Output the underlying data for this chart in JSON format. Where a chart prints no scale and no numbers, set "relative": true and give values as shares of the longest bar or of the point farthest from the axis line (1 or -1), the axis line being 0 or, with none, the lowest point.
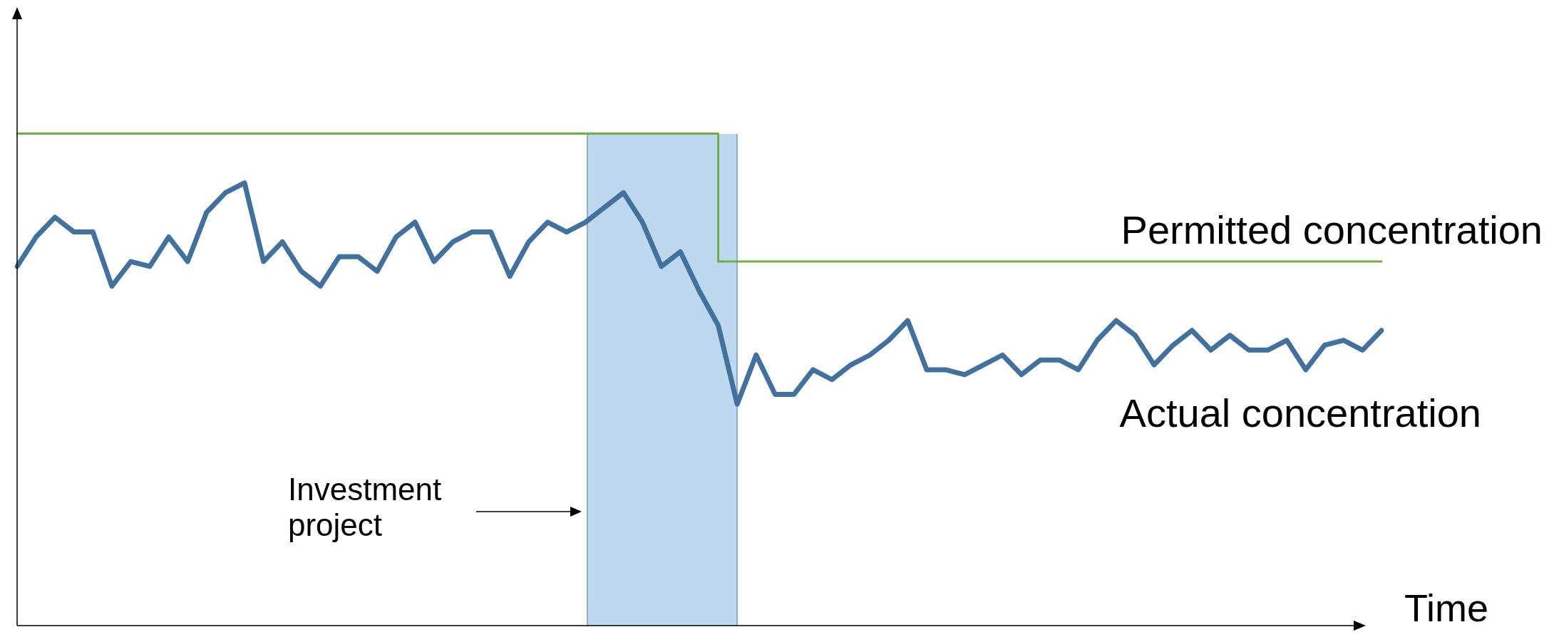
{
  "chart_data": {
    "type": "line",
    "relative": true,
    "xlabel": "Time",
    "legend": false,
    "marker": "none",
    "annotations": [
      "Investment project"
    ],
    "line_style": "solid",
    "categories": [
      null,
      null,
      null,
      null,
      null,
      null,
      null,
      null,
      null,
      null,
      null,
      null,
      null,
      null,
      null,
      null,
      null,
      null,
      null,
      null,
      null,
      null,
      null,
      null,
      null,
      null,
      null,
      null,
      null,
      null,
      null,
      null,
      null,
      null,
      null,
      null,
      null,
      null,
      null,
      null,
      null,
      null,
      null,
      null,
      null,
      null,
      null,
      null,
      null,
      null,
      null,
      null,
      null,
      null,
      null,
      null,
      null,
      null,
      null,
      null,
      null,
      null,
      null,
      null,
      null,
      null,
      null,
      null,
      null,
      null,
      null,
      null,
      null
    ],
    "series": [
      {
        "name": "Actual concentration",
        "color": "#41719c",
        "values": [
          0.73,
          0.79,
          0.83,
          0.8,
          0.8,
          0.69,
          0.74,
          0.73,
          0.79,
          0.74,
          0.84,
          0.88,
          0.9,
          0.74,
          0.78,
          0.72,
          0.69,
          0.75,
          0.75,
          0.72,
          0.79,
          0.82,
          0.74,
          0.78,
          0.8,
          0.8,
          0.71,
          0.78,
          0.82,
          0.8,
          0.82,
          0.85,
          0.88,
          0.82,
          0.73,
          0.76,
          0.68,
          0.61,
          0.45,
          0.55,
          0.47,
          0.47,
          0.52,
          0.5,
          0.53,
          0.55,
          0.58,
          0.62,
          0.52,
          0.52,
          0.51,
          0.53,
          0.55,
          0.51,
          0.54,
          0.54,
          0.52,
          0.58,
          0.62,
          0.59,
          0.53,
          0.57,
          0.6,
          0.56,
          0.59,
          0.56,
          0.56,
          0.58,
          0.52,
          0.57,
          0.58,
          0.56,
          0.6
        ]
      },
      {
        "name": "Permitted concentration",
        "type": "step",
        "color": "#70ad47",
        "values": [
          1,
          1,
          1,
          1,
          1,
          1,
          1,
          1,
          1,
          1,
          1,
          1,
          1,
          1,
          1,
          1,
          1,
          1,
          1,
          1,
          1,
          1,
          1,
          1,
          1,
          1,
          1,
          1,
          1,
          1,
          1,
          1,
          1,
          1,
          1,
          1,
          1,
          1,
          0.74,
          0.74,
          0.74,
          0.74,
          0.74,
          0.74,
          0.74,
          0.74,
          0.74,
          0.74,
          0.74,
          0.74,
          0.74,
          0.74,
          0.74,
          0.74,
          0.74,
          0.74,
          0.74,
          0.74,
          0.74,
          0.74,
          0.74,
          0.74,
          0.74,
          0.74,
          0.74,
          0.74,
          0.74,
          0.74,
          0.74,
          0.74,
          0.74,
          0.74,
          0.74
        ]
      }
    ]
  }
}
